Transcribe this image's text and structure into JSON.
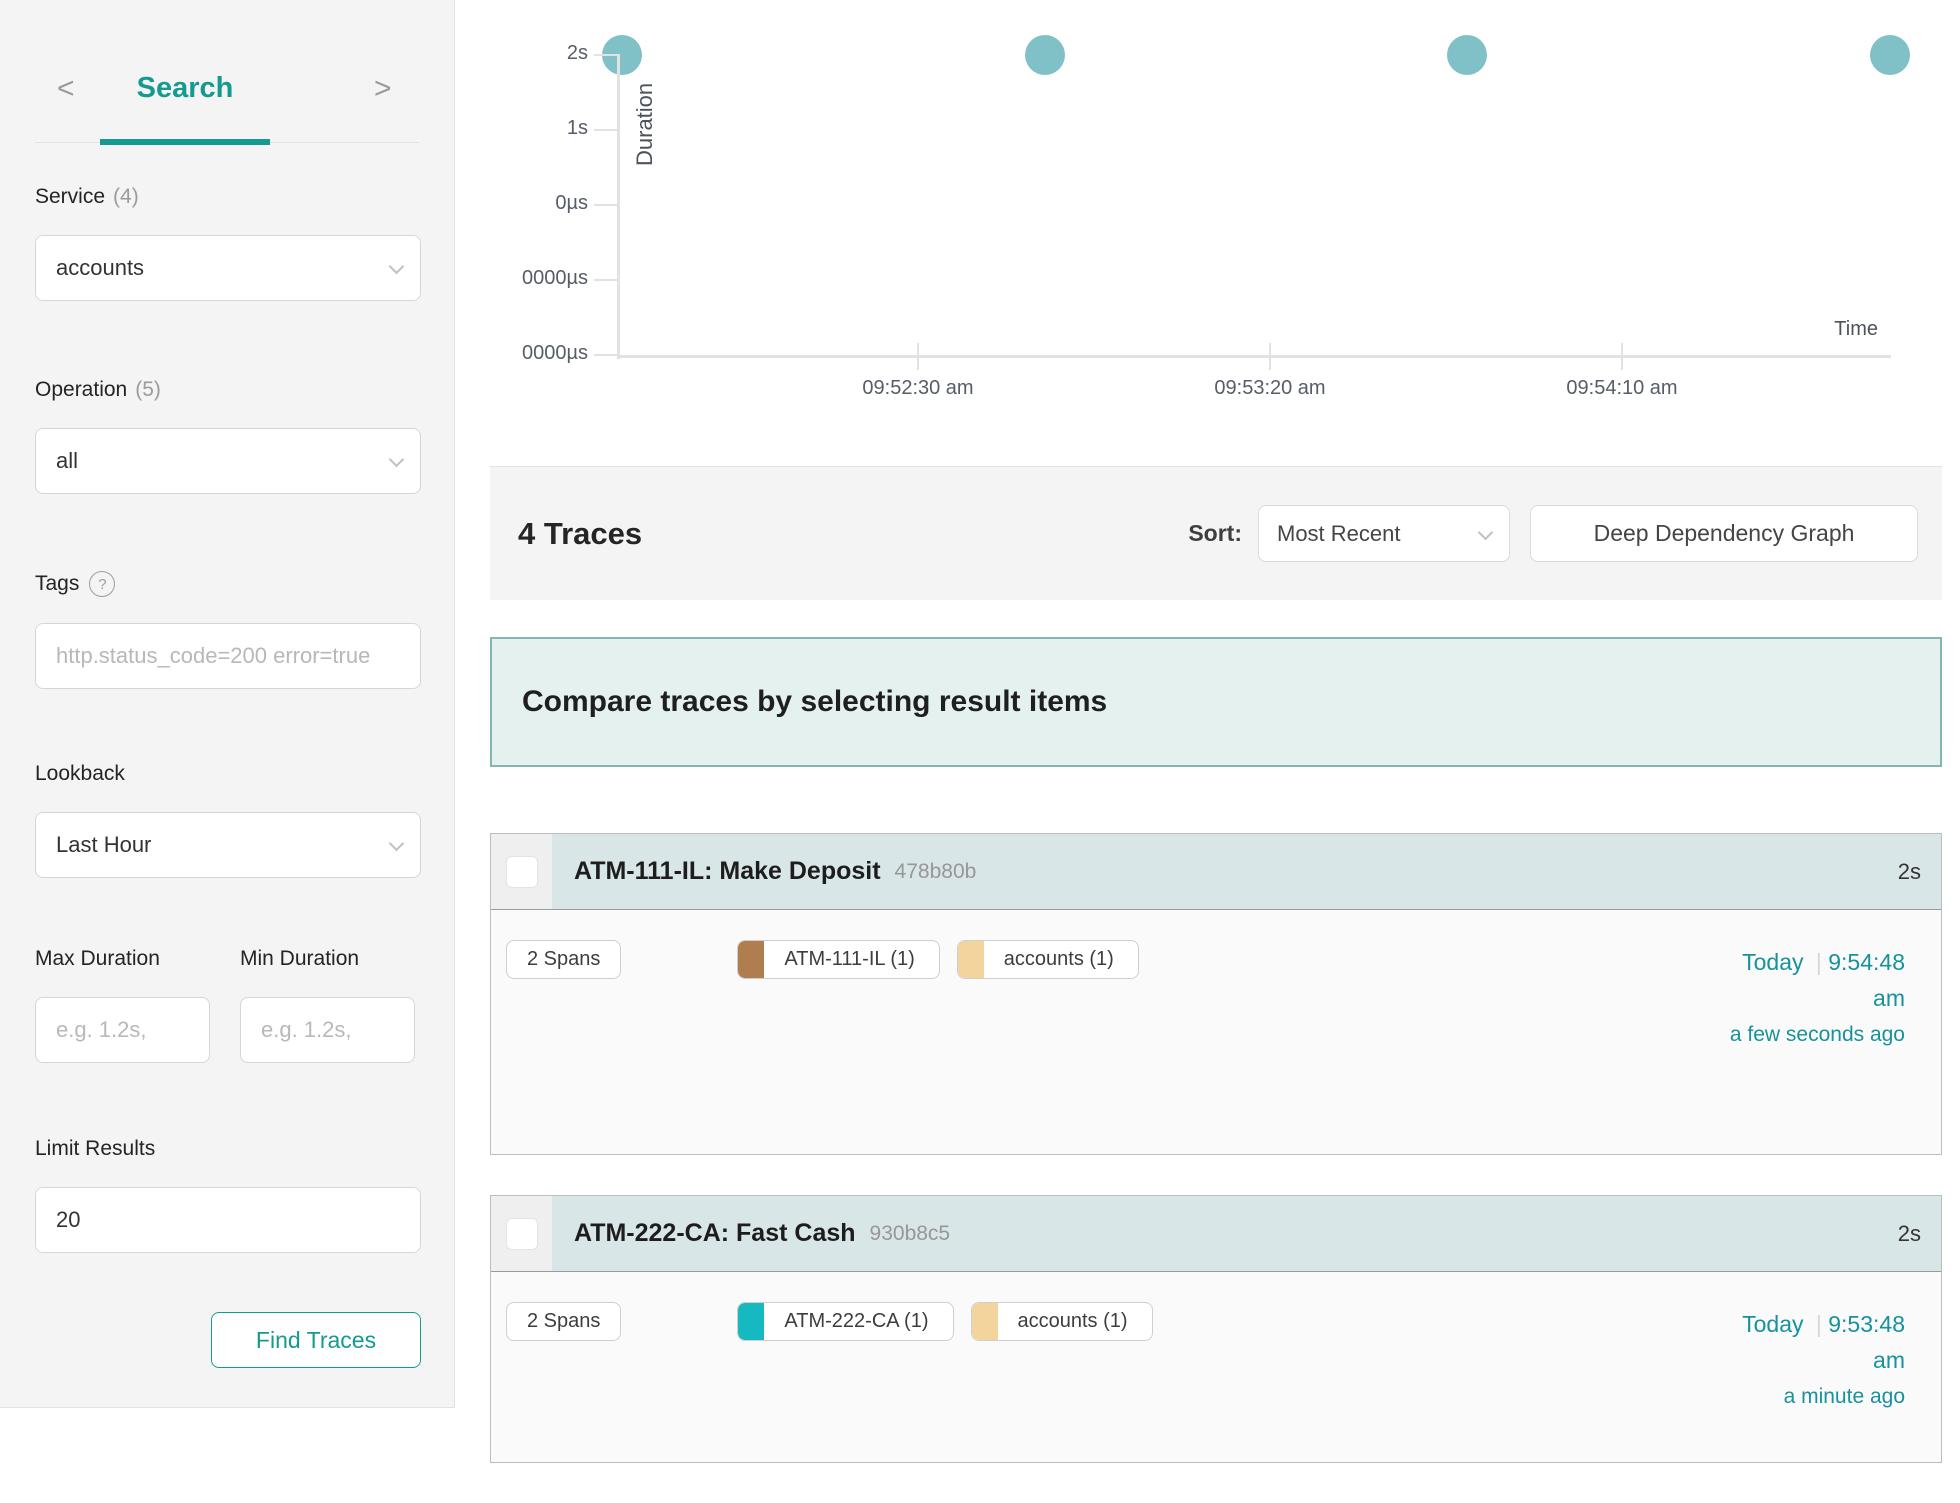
{
  "colors": {
    "accent": "#149a8f",
    "link": "#17929c",
    "dot": "#7fc1c6",
    "trace_header_bg": "#d8e6e8",
    "banner_bg": "#e4f1ef",
    "banner_border": "#83b7b1"
  },
  "ui": {
    "pipe": "|",
    "prev_chevron": "<",
    "next_chevron": ">",
    "help_glyph": "?"
  },
  "sidebar": {
    "title": "Search",
    "service": {
      "label": "Service",
      "count": "(4)",
      "value": "accounts"
    },
    "operation": {
      "label": "Operation",
      "count": "(5)",
      "value": "all"
    },
    "tags": {
      "label": "Tags",
      "placeholder": "http.status_code=200 error=true"
    },
    "lookback": {
      "label": "Lookback",
      "value": "Last Hour"
    },
    "max_duration": {
      "label": "Max Duration",
      "placeholder": "e.g. 1.2s,"
    },
    "min_duration": {
      "label": "Min Duration",
      "placeholder": "e.g. 1.2s,"
    },
    "limit": {
      "label": "Limit Results",
      "value": "20"
    },
    "find_button": "Find Traces"
  },
  "chart_data": {
    "type": "scatter",
    "xlabel": "Time",
    "ylabel": "Duration",
    "y_tick_labels": [
      "2s",
      "1s",
      "0µs",
      "0000µs",
      "0000µs"
    ],
    "x_tick_labels": [
      "09:52:30 am",
      "09:53:20 am",
      "09:54:10 am"
    ],
    "x_tick_interval_seconds": 50,
    "points": [
      {
        "time": "09:51:48 am",
        "duration": "2s",
        "duration_s": 2
      },
      {
        "time": "09:52:48 am",
        "duration": "2s",
        "duration_s": 2
      },
      {
        "time": "09:53:48 am",
        "duration": "2s",
        "duration_s": 2
      },
      {
        "time": "09:54:48 am",
        "duration": "2s",
        "duration_s": 2
      }
    ]
  },
  "results_bar": {
    "count_label": "4 Traces",
    "sort_label": "Sort:",
    "sort_value": "Most Recent",
    "ddg_button": "Deep Dependency Graph"
  },
  "banner": {
    "text": "Compare traces by selecting result items"
  },
  "traces": [
    {
      "title_service": "ATM-111-IL: Make Deposit",
      "trace_id": "478b80b",
      "duration": "2s",
      "spans": "2 Spans",
      "services": [
        {
          "name": "ATM-111-IL (1)",
          "color": "#b07d4f"
        },
        {
          "name": "accounts (1)",
          "color": "#f2d49c"
        }
      ],
      "date": "Today",
      "time": "9:54:48 am",
      "relative": "a few seconds ago"
    },
    {
      "title_service": "ATM-222-CA: Fast Cash",
      "trace_id": "930b8c5",
      "duration": "2s",
      "spans": "2 Spans",
      "services": [
        {
          "name": "ATM-222-CA (1)",
          "color": "#16b9bf"
        },
        {
          "name": "accounts (1)",
          "color": "#f2d49c"
        }
      ],
      "date": "Today",
      "time": "9:53:48 am",
      "relative": "a minute ago"
    }
  ]
}
